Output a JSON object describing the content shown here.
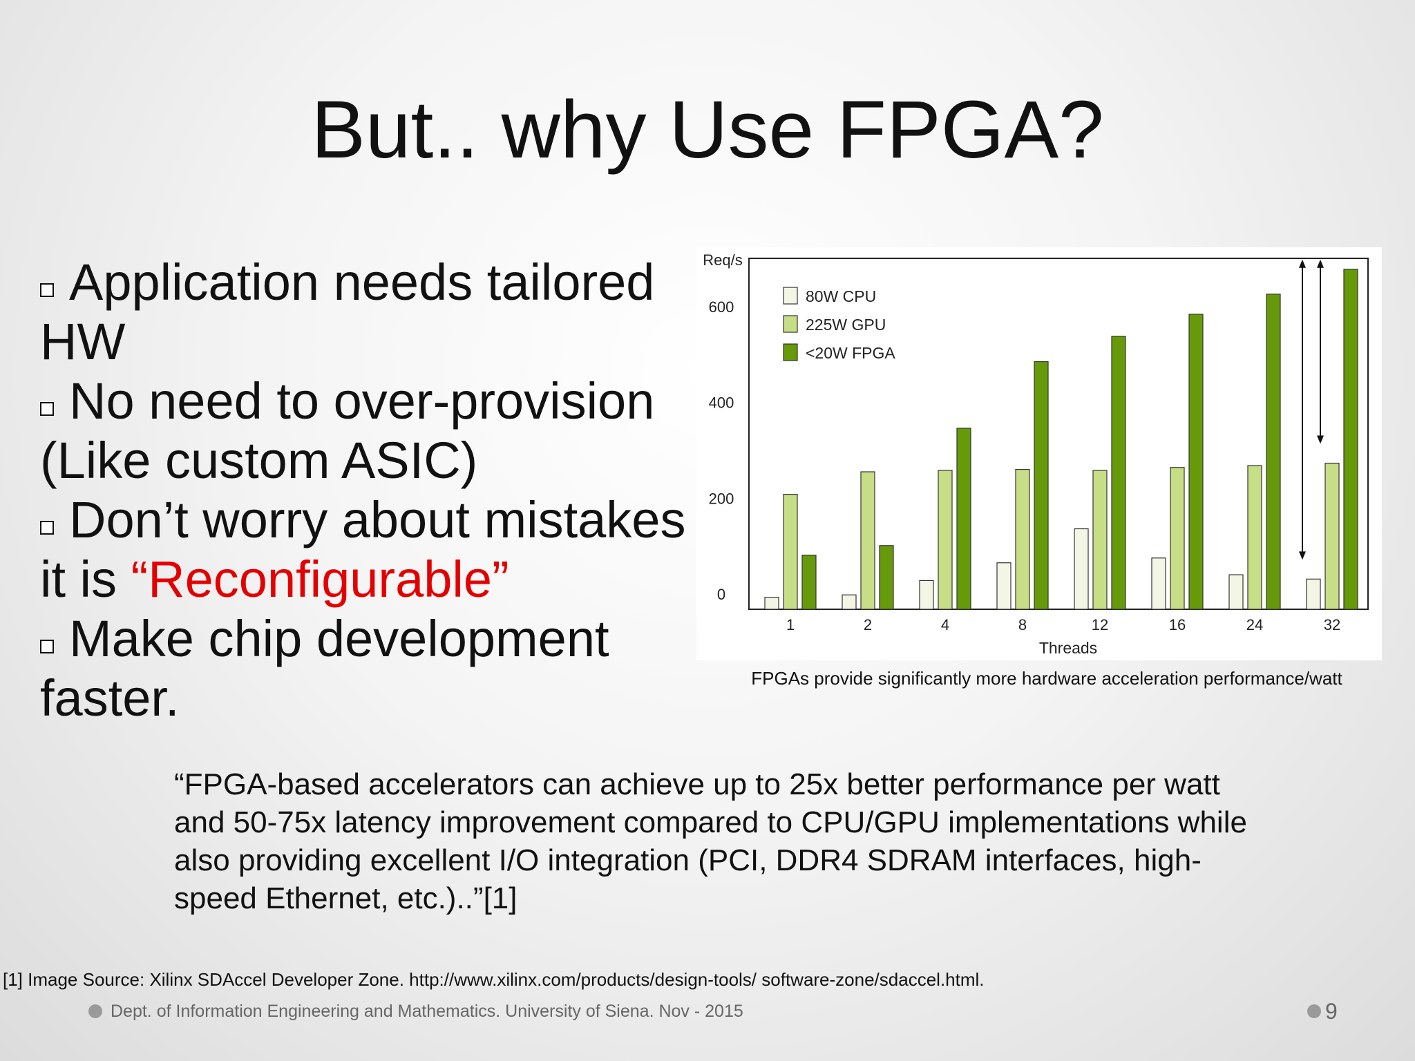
{
  "slide": {
    "title": "But.. why Use FPGA?",
    "bullets": [
      {
        "text": "Application needs tailored HW"
      },
      {
        "text": "No need to over-provision (Like custom ASIC)"
      },
      {
        "text": "Don’t worry about mistakes it is ",
        "highlight": "“Reconfigurable”"
      },
      {
        "text": "Make chip development faster."
      }
    ],
    "chart_caption": "FPGAs provide significantly more hardware acceleration performance/watt",
    "quote": "“FPGA-based accelerators can achieve up to 25x better performance per watt and 50-75x latency improvement compared to CPU/GPU implementations while also providing excellent I/O integration (PCI, DDR4 SDRAM interfaces, high-speed Ethernet, etc.)..”[1]",
    "source": "[1] Image Source: Xilinx SDAccel Developer Zone. http://www.xilinx.com/products/design-tools/ software-zone/sdaccel.html.",
    "footer": "Dept. of Information Engineering and Mathematics. University of Siena. Nov - 2015",
    "page_number": "9"
  },
  "chart_data": {
    "type": "bar",
    "title": "",
    "ylabel": "Req/s",
    "xlabel": "Threads",
    "categories": [
      "1",
      "2",
      "4",
      "8",
      "12",
      "16",
      "24",
      "32"
    ],
    "ylim": [
      0,
      730
    ],
    "yticks": [
      0,
      200,
      400,
      600
    ],
    "legend_position": "top-left",
    "series": [
      {
        "name": "80W CPU",
        "color": "#f3f6e4",
        "values": [
          25,
          30,
          60,
          97,
          168,
          107,
          72,
          63
        ]
      },
      {
        "name": "225W GPU",
        "color": "#c7dd86",
        "values": [
          240,
          287,
          290,
          292,
          290,
          296,
          300,
          305
        ]
      },
      {
        "name": "<20W FPGA",
        "color": "#669a0a",
        "values": [
          113,
          133,
          378,
          517,
          570,
          616,
          658,
          710
        ]
      }
    ]
  }
}
